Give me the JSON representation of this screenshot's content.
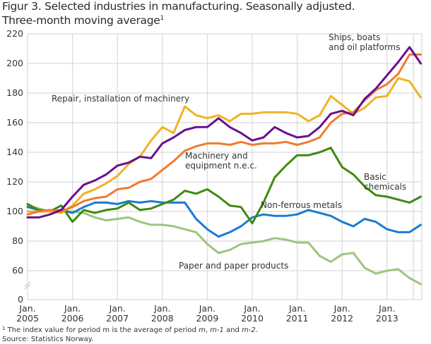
{
  "title_line1": "Figur 3. Selected industries in manufacturing. Seasonally adjusted.",
  "title_line2": "Three-month moving average",
  "title_sup": "1",
  "footnote": {
    "sup": "1",
    "text_a": " The index value for period m is the average of period ",
    "m": "m",
    "sep1": ", ",
    "m1": "m-1",
    "sep2": " and ",
    "m2": "m-2",
    "end": ".",
    "source": "Source: Statistics Norway."
  },
  "chart_data": {
    "type": "line",
    "title": "Figur 3. Selected industries in manufacturing. Seasonally adjusted. Three-month moving average",
    "xlabel": "",
    "ylabel": "",
    "ylim": [
      0,
      220
    ],
    "axis_break": "between 0 and 60",
    "grid": true,
    "yticks": [
      0,
      60,
      80,
      100,
      120,
      140,
      160,
      180,
      200,
      220
    ],
    "xtick_labels": [
      [
        "Jan.",
        "2005"
      ],
      [
        "Jan.",
        "2006"
      ],
      [
        "Jan.",
        "2007"
      ],
      [
        "Jan.",
        "2008"
      ],
      [
        "Jan.",
        "2009"
      ],
      [
        "Jan.",
        "2010"
      ],
      [
        "Jan.",
        "2011"
      ],
      [
        "Jan.",
        "2012"
      ],
      [
        "Jan.",
        "2013"
      ]
    ],
    "x": [
      "2005-01",
      "2005-04",
      "2005-07",
      "2005-10",
      "2006-01",
      "2006-04",
      "2006-07",
      "2006-10",
      "2007-01",
      "2007-04",
      "2007-07",
      "2007-10",
      "2008-01",
      "2008-04",
      "2008-07",
      "2008-10",
      "2009-01",
      "2009-04",
      "2009-07",
      "2009-10",
      "2010-01",
      "2010-04",
      "2010-07",
      "2010-10",
      "2011-01",
      "2011-04",
      "2011-07",
      "2011-10",
      "2012-01",
      "2012-04",
      "2012-07",
      "2012-10",
      "2013-01",
      "2013-04",
      "2013-07",
      "2013-10"
    ],
    "series": [
      {
        "name": "Ships, boats and oil platforms",
        "color": "#6a0f8e",
        "values": [
          96,
          96,
          98,
          101,
          110,
          118,
          121,
          125,
          131,
          133,
          137,
          136,
          146,
          150,
          155,
          157,
          157,
          163,
          157,
          153,
          148,
          150,
          157,
          153,
          150,
          151,
          157,
          166,
          168,
          165,
          176,
          183,
          192,
          201,
          211,
          200
        ]
      },
      {
        "name": "Machinery and equipment n.e.c.",
        "color": "#f07b2d",
        "values": [
          98,
          100,
          101,
          100,
          103,
          107,
          109,
          110,
          115,
          116,
          120,
          122,
          128,
          134,
          141,
          144,
          146,
          146,
          145,
          147,
          145,
          146,
          146,
          147,
          145,
          147,
          150,
          160,
          166,
          167,
          175,
          182,
          186,
          193,
          206,
          206
        ]
      },
      {
        "name": "Repair, installation of machinery",
        "color": "#f0b323",
        "values": [
          100,
          100,
          100,
          99,
          104,
          112,
          115,
          119,
          124,
          132,
          137,
          148,
          157,
          153,
          171,
          165,
          163,
          165,
          161,
          166,
          166,
          167,
          167,
          167,
          166,
          161,
          165,
          178,
          172,
          166,
          170,
          177,
          178,
          190,
          188,
          177
        ]
      },
      {
        "name": "Basic chemicals",
        "color": "#3f8a0f",
        "values": [
          105,
          101,
          100,
          104,
          93,
          101,
          99,
          101,
          102,
          106,
          101,
          102,
          105,
          108,
          114,
          112,
          115,
          110,
          104,
          103,
          92,
          106,
          123,
          131,
          138,
          138,
          140,
          143,
          130,
          125,
          117,
          111,
          110,
          108,
          106,
          110
        ]
      },
      {
        "name": "Non-ferrous metals",
        "color": "#1a7ad4",
        "values": [
          103,
          101,
          100,
          101,
          99,
          103,
          106,
          106,
          105,
          107,
          106,
          107,
          106,
          106,
          106,
          95,
          88,
          83,
          86,
          90,
          96,
          98,
          97,
          97,
          98,
          101,
          99,
          97,
          93,
          90,
          95,
          93,
          88,
          86,
          86,
          91
        ]
      },
      {
        "name": "Paper and paper products",
        "color": "#9cc57e",
        "values": [
          104,
          102,
          100,
          100,
          100,
          99,
          96,
          94,
          95,
          96,
          93,
          91,
          91,
          90,
          88,
          86,
          78,
          72,
          74,
          78,
          79,
          80,
          82,
          81,
          79,
          79,
          70,
          66,
          71,
          72,
          62,
          58,
          60,
          61,
          55,
          51
        ]
      }
    ],
    "annotations": [
      {
        "series": "Ships, boats and oil platforms",
        "lines": [
          "Ships, boats",
          "and oil platforms"
        ]
      },
      {
        "series": "Repair, installation of machinery",
        "lines": [
          "Repair, installation of machinery"
        ]
      },
      {
        "series": "Machinery and equipment n.e.c.",
        "lines": [
          "Machinery and",
          "equipment n.e.c."
        ]
      },
      {
        "series": "Basic chemicals",
        "lines": [
          "Basic",
          "chemicals"
        ]
      },
      {
        "series": "Non-ferrous metals",
        "lines": [
          "Non-ferrous metals"
        ]
      },
      {
        "series": "Paper and paper products",
        "lines": [
          "Paper and paper products"
        ]
      }
    ],
    "legend": "none (inline annotations)"
  }
}
